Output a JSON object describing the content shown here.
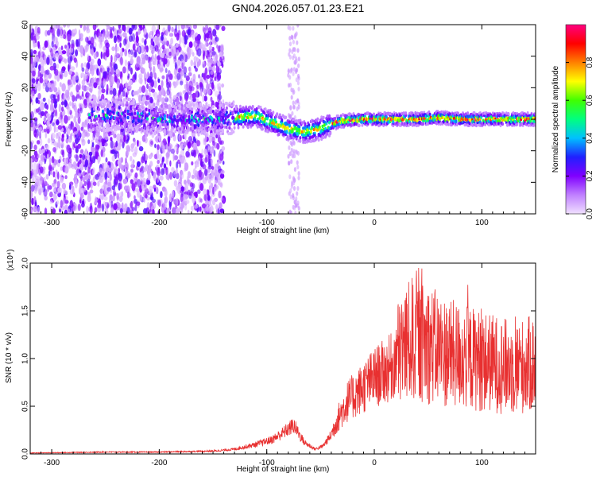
{
  "title": "GN04.2026.057.01.23.E21",
  "chart_data": [
    {
      "type": "heatmap",
      "xlabel": "Height of straight line (km)",
      "ylabel": "Frequency (Hz)",
      "xlim": [
        -320,
        150
      ],
      "ylim": [
        -60,
        60
      ],
      "xticks": [
        -300,
        -200,
        -100,
        0,
        100
      ],
      "yticks": [
        -60,
        -40,
        -20,
        0,
        20,
        40,
        60
      ],
      "colorbar": {
        "label": "Normalized spectral amplitude",
        "range": [
          0,
          1
        ],
        "ticks": [
          0.0,
          0.2,
          0.4,
          0.6,
          0.8
        ],
        "tick_labels": [
          "0.0",
          "0.2",
          "0.4",
          "0.6",
          "0.8"
        ],
        "colors": [
          "#f0e0ff",
          "#c080ff",
          "#8000ff",
          "#2020ff",
          "#00c0ff",
          "#00ff80",
          "#40ff00",
          "#ffff00",
          "#ff8000",
          "#ff0000",
          "#ff0080"
        ]
      },
      "ridge_center_hz": [
        [
          -260,
          2
        ],
        [
          -230,
          3
        ],
        [
          -200,
          0
        ],
        [
          -150,
          0
        ],
        [
          -130,
          1
        ],
        [
          -110,
          2
        ],
        [
          -95,
          -2
        ],
        [
          -80,
          -6
        ],
        [
          -65,
          -8
        ],
        [
          -50,
          -6
        ],
        [
          -40,
          -3
        ],
        [
          -30,
          -1
        ],
        [
          -10,
          0
        ],
        [
          0,
          0
        ],
        [
          20,
          0
        ],
        [
          40,
          0
        ],
        [
          60,
          1
        ],
        [
          80,
          0
        ],
        [
          100,
          0
        ],
        [
          120,
          0
        ],
        [
          150,
          0
        ]
      ]
    },
    {
      "type": "line",
      "xlabel": "Height of straight line (km)",
      "ylabel": "SNR (10 * v/v)",
      "y_multiplier": "(x10⁴)",
      "xlim": [
        -320,
        150
      ],
      "ylim": [
        0,
        2.0
      ],
      "xticks": [
        -300,
        -200,
        -100,
        0,
        100
      ],
      "yticks": [
        0.0,
        0.5,
        1.0,
        1.5,
        2.0
      ],
      "ytick_labels": [
        "0.0",
        "0.5",
        "1.0",
        "1.5",
        "2.0"
      ],
      "color": "#e83030",
      "envelope": [
        [
          -320,
          0.01
        ],
        [
          -250,
          0.02
        ],
        [
          -200,
          0.02
        ],
        [
          -150,
          0.03
        ],
        [
          -130,
          0.05
        ],
        [
          -110,
          0.1
        ],
        [
          -95,
          0.15
        ],
        [
          -85,
          0.22
        ],
        [
          -75,
          0.3
        ],
        [
          -65,
          0.12
        ],
        [
          -55,
          0.05
        ],
        [
          -48,
          0.08
        ],
        [
          -40,
          0.2
        ],
        [
          -35,
          0.35
        ],
        [
          -25,
          0.55
        ],
        [
          -10,
          0.7
        ],
        [
          0,
          0.8
        ],
        [
          15,
          0.9
        ],
        [
          25,
          1.1
        ],
        [
          35,
          1.2
        ],
        [
          50,
          1.15
        ],
        [
          70,
          1.05
        ],
        [
          90,
          1.0
        ],
        [
          110,
          0.95
        ],
        [
          130,
          0.9
        ],
        [
          150,
          0.95
        ]
      ]
    }
  ]
}
